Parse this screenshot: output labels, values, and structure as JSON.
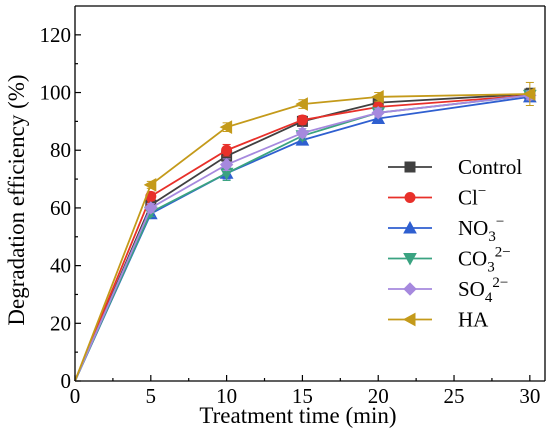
{
  "chart_data": {
    "type": "line",
    "xlabel": "Treatment time (min)",
    "ylabel": "Degradation efficiency (%)",
    "xlim": [
      0,
      31
    ],
    "ylim": [
      0,
      130
    ],
    "xticks": [
      0,
      5,
      10,
      15,
      20,
      25,
      30
    ],
    "yticks": [
      0,
      20,
      40,
      60,
      80,
      100,
      120
    ],
    "legend_position": "bottom-right",
    "grid": false,
    "series": [
      {
        "name": "Control",
        "base": "Control",
        "sup": "",
        "sub": "",
        "color": "#404040",
        "marker": "square",
        "x": [
          0,
          5,
          10,
          15,
          20,
          30
        ],
        "y": [
          0,
          61,
          78,
          90,
          96.5,
          99.5
        ],
        "err": [
          0,
          1.5,
          2,
          1.5,
          1.5,
          2
        ]
      },
      {
        "name": "Cl⁻",
        "base": "Cl",
        "sup": "−",
        "sub": "",
        "color": "#e8302a",
        "marker": "circle",
        "x": [
          0,
          5,
          10,
          15,
          20,
          30
        ],
        "y": [
          0,
          64,
          80,
          90.5,
          95,
          99
        ],
        "err": [
          0,
          1.5,
          2,
          1.5,
          1.5,
          1.5
        ]
      },
      {
        "name": "NO₃⁻",
        "base": "NO",
        "sup": "−",
        "sub": "3",
        "color": "#2f5fd0",
        "marker": "triangle-up",
        "x": [
          0,
          5,
          10,
          15,
          20,
          30
        ],
        "y": [
          0,
          58,
          72,
          83.5,
          91,
          98.5
        ],
        "err": [
          0,
          1.5,
          2,
          1.5,
          1.5,
          1.5
        ]
      },
      {
        "name": "CO₃²⁻",
        "base": "CO",
        "sup": "2−",
        "sub": "3",
        "color": "#3aa381",
        "marker": "triangle-down",
        "x": [
          0,
          5,
          10,
          15,
          20,
          30
        ],
        "y": [
          0,
          58.5,
          72,
          85,
          93,
          99
        ],
        "err": [
          0,
          1.5,
          2.5,
          1.5,
          1.5,
          1.5
        ]
      },
      {
        "name": "SO₄²⁻",
        "base": "SO",
        "sup": "2−",
        "sub": "4",
        "color": "#a689de",
        "marker": "diamond",
        "x": [
          0,
          5,
          10,
          15,
          20,
          30
        ],
        "y": [
          0,
          60,
          75,
          86,
          93,
          99
        ],
        "err": [
          0,
          1.5,
          2,
          1.5,
          1.5,
          1.5
        ]
      },
      {
        "name": "HA",
        "base": "HA",
        "sup": "",
        "sub": "",
        "color": "#c49a1a",
        "marker": "triangle-left",
        "x": [
          0,
          5,
          10,
          15,
          20,
          30
        ],
        "y": [
          0,
          68,
          88,
          96,
          98.5,
          99.5
        ],
        "err": [
          0,
          1.2,
          1.5,
          1.5,
          1.5,
          4
        ]
      }
    ]
  }
}
